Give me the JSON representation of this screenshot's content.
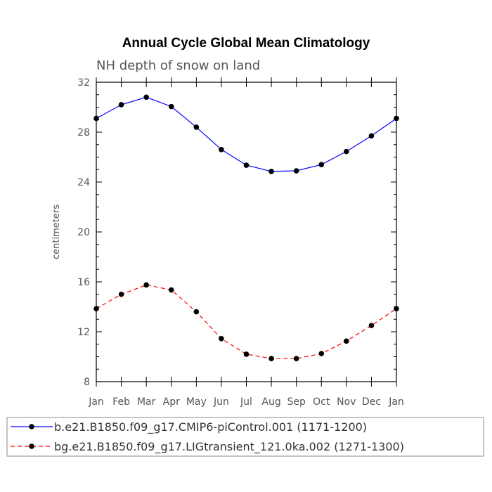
{
  "chart_data": {
    "type": "line",
    "title": "Annual Cycle Global Mean Climatology",
    "subtitle": "NH depth of snow on land",
    "xlabel": "",
    "ylabel": "centimeters",
    "categories": [
      "Jan",
      "Feb",
      "Mar",
      "Apr",
      "May",
      "Jun",
      "Jul",
      "Aug",
      "Sep",
      "Oct",
      "Nov",
      "Dec",
      "Jan"
    ],
    "ylim": [
      8,
      32
    ],
    "yticks": [
      8,
      12,
      16,
      20,
      24,
      28,
      32
    ],
    "series": [
      {
        "name": "b.e21.B1850.f09_g17.CMIP6-piControl.001 (1171-1200)",
        "color": "#0000ff",
        "dash": "solid",
        "values": [
          29.1,
          30.2,
          30.8,
          30.05,
          28.4,
          26.6,
          25.35,
          24.85,
          24.9,
          25.4,
          26.45,
          27.7,
          29.1
        ]
      },
      {
        "name": "bg.e21.B1850.f09_g17.LIGtransient_121.0ka.002 (1271-1300)",
        "color": "#ff0000",
        "dash": "dashed",
        "values": [
          13.85,
          15.0,
          15.75,
          15.35,
          13.6,
          11.45,
          10.2,
          9.85,
          9.85,
          10.25,
          11.25,
          12.5,
          13.85
        ]
      }
    ],
    "legend": "bottom"
  }
}
